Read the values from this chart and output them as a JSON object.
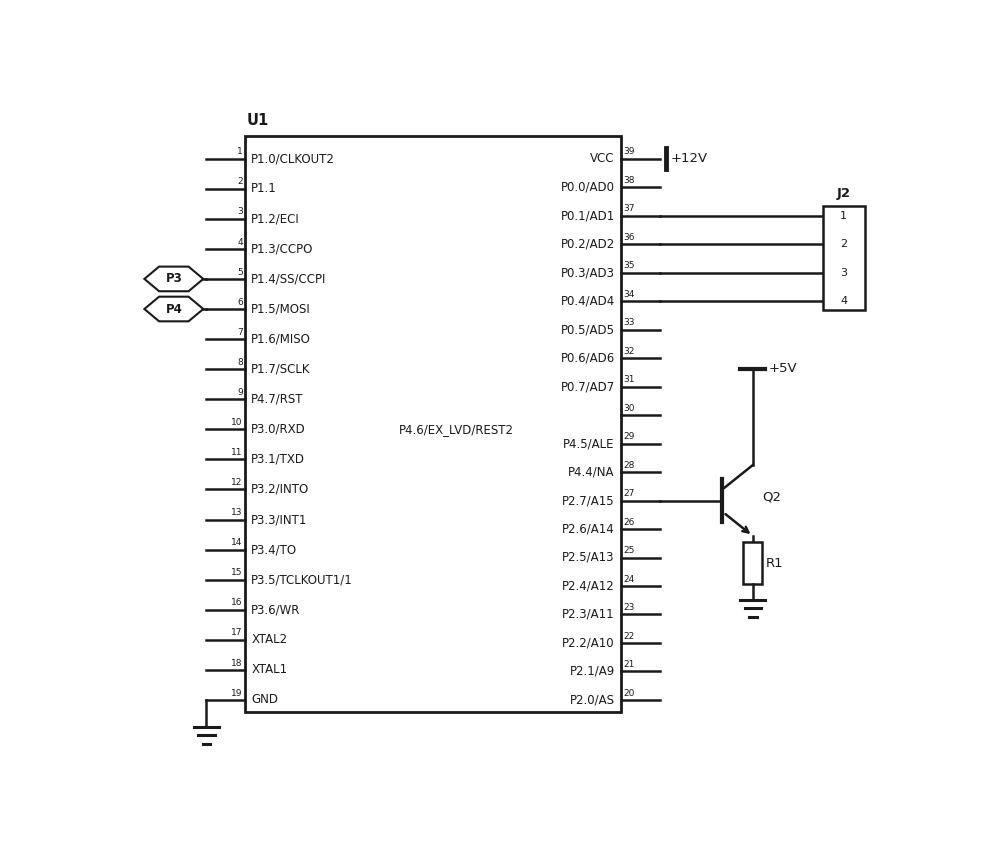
{
  "chip_label": "U1",
  "left_pins": [
    {
      "num": 1,
      "label": "P1.0/CLKOUT2"
    },
    {
      "num": 2,
      "label": "P1.1"
    },
    {
      "num": 3,
      "label": "P1.2/ECI"
    },
    {
      "num": 4,
      "label": "P1.3/CCPO"
    },
    {
      "num": 5,
      "label": "P1.4/SS/CCPI"
    },
    {
      "num": 6,
      "label": "P1.5/MOSI"
    },
    {
      "num": 7,
      "label": "P1.6/MISO"
    },
    {
      "num": 8,
      "label": "P1.7/SCLK"
    },
    {
      "num": 9,
      "label": "P4.7/RST"
    },
    {
      "num": 10,
      "label": "P3.0/RXD"
    },
    {
      "num": 11,
      "label": "P3.1/TXD"
    },
    {
      "num": 12,
      "label": "P3.2/INTO"
    },
    {
      "num": 13,
      "label": "P3.3/INT1"
    },
    {
      "num": 14,
      "label": "P3.4/TO"
    },
    {
      "num": 15,
      "label": "P3.5/TCLKOUT1/1"
    },
    {
      "num": 16,
      "label": "P3.6/WR"
    },
    {
      "num": 17,
      "label": "XTAL2"
    },
    {
      "num": 18,
      "label": "XTAL1"
    },
    {
      "num": 19,
      "label": "GND"
    }
  ],
  "right_pins": [
    {
      "num": 39,
      "label": "VCC"
    },
    {
      "num": 38,
      "label": "P0.0/AD0"
    },
    {
      "num": 37,
      "label": "P0.1/AD1"
    },
    {
      "num": 36,
      "label": "P0.2/AD2"
    },
    {
      "num": 35,
      "label": "P0.3/AD3"
    },
    {
      "num": 34,
      "label": "P0.4/AD4"
    },
    {
      "num": 33,
      "label": "P0.5/AD5"
    },
    {
      "num": 32,
      "label": "P0.6/AD6"
    },
    {
      "num": 31,
      "label": "P0.7/AD7"
    },
    {
      "num": 30,
      "label": "P4.6/EX_LVD/REST2"
    },
    {
      "num": 29,
      "label": "P4.5/ALE"
    },
    {
      "num": 28,
      "label": "P4.4/NA"
    },
    {
      "num": 27,
      "label": "P2.7/A15"
    },
    {
      "num": 26,
      "label": "P2.6/A14"
    },
    {
      "num": 25,
      "label": "P2.5/A13"
    },
    {
      "num": 24,
      "label": "P2.4/A12"
    },
    {
      "num": 23,
      "label": "P2.3/A11"
    },
    {
      "num": 22,
      "label": "P2.2/A10"
    },
    {
      "num": 21,
      "label": "P2.1/A9"
    },
    {
      "num": 20,
      "label": "P2.0/AS"
    }
  ],
  "center_label_pin10": "P4.6/EX_LVD/REST2",
  "j2_connect_indices": [
    2,
    3,
    4,
    5
  ],
  "j2_pin_labels": [
    "1",
    "2",
    "3",
    "4"
  ],
  "font_size": 8.5,
  "line_color": "#1a1a1a",
  "text_color": "#1a1a1a"
}
